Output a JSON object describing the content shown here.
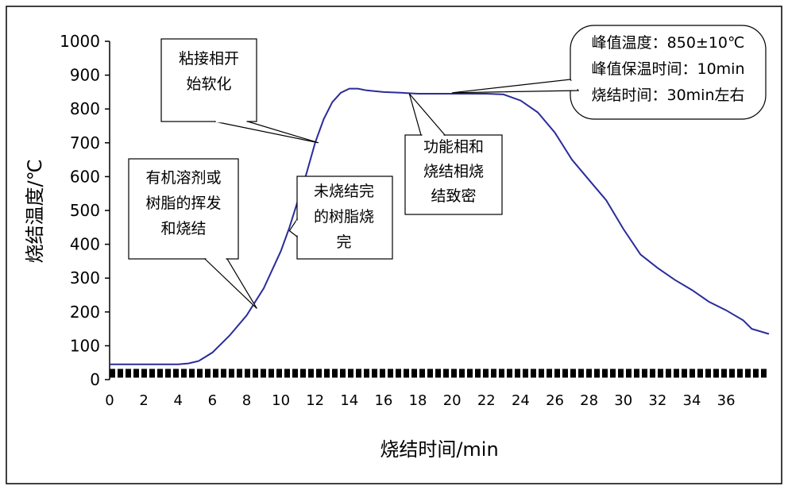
{
  "chart_data": {
    "type": "line",
    "title": "",
    "xlabel": "烧结时间/min",
    "ylabel": "烧结温度/℃",
    "xlim": [
      0,
      38.5
    ],
    "ylim": [
      0,
      1000
    ],
    "x_ticks": [
      "0",
      "2",
      "4",
      "6",
      "8",
      "10",
      "12",
      "14",
      "16",
      "18",
      "20",
      "22",
      "24",
      "26",
      "28",
      "30",
      "32",
      "34",
      "36"
    ],
    "y_ticks": [
      "0",
      "100",
      "200",
      "300",
      "400",
      "500",
      "600",
      "700",
      "800",
      "900",
      "1000"
    ],
    "grid": false,
    "legend": "none",
    "line_color": "#2b2b9a",
    "series": [
      {
        "x": [
          0,
          4,
          4.6,
          5.2,
          6,
          7,
          8,
          9,
          10,
          10.5,
          11,
          11.5,
          12,
          12.5,
          13,
          13.5,
          14,
          14.5,
          15,
          16,
          17,
          18,
          19,
          20,
          21,
          22,
          23,
          24,
          25,
          26,
          27,
          28,
          29,
          30,
          31,
          32,
          33,
          34,
          35,
          36,
          37,
          37.5,
          38.5
        ],
        "y": [
          45,
          45,
          48,
          55,
          80,
          130,
          190,
          270,
          380,
          450,
          530,
          610,
          700,
          770,
          820,
          848,
          860,
          860,
          855,
          850,
          848,
          845,
          845,
          845,
          845,
          845,
          843,
          825,
          790,
          730,
          650,
          590,
          530,
          445,
          370,
          330,
          295,
          265,
          230,
          205,
          175,
          150,
          135
        ]
      }
    ],
    "annotations": [
      {
        "lines": [
          "有机溶剂或",
          "树脂的挥发",
          "和烧结"
        ],
        "x": 8.6,
        "y": 210,
        "box": "rect"
      },
      {
        "lines": [
          "粘接相开",
          "始软化"
        ],
        "x": 12.2,
        "y": 700,
        "box": "rect"
      },
      {
        "lines": [
          "未烧结完",
          "的树脂烧",
          "完"
        ],
        "x": 10.5,
        "y": 440,
        "box": "rect"
      },
      {
        "lines": [
          "功能相和",
          "烧结相烧",
          "结致密"
        ],
        "x": 17.5,
        "y": 845,
        "box": "rect"
      },
      {
        "lines": [
          "峰值温度：850±10℃",
          "峰值保温时间：10min",
          "烧结时间：30min左右"
        ],
        "x": 20,
        "y": 848,
        "box": "rounded"
      }
    ]
  }
}
